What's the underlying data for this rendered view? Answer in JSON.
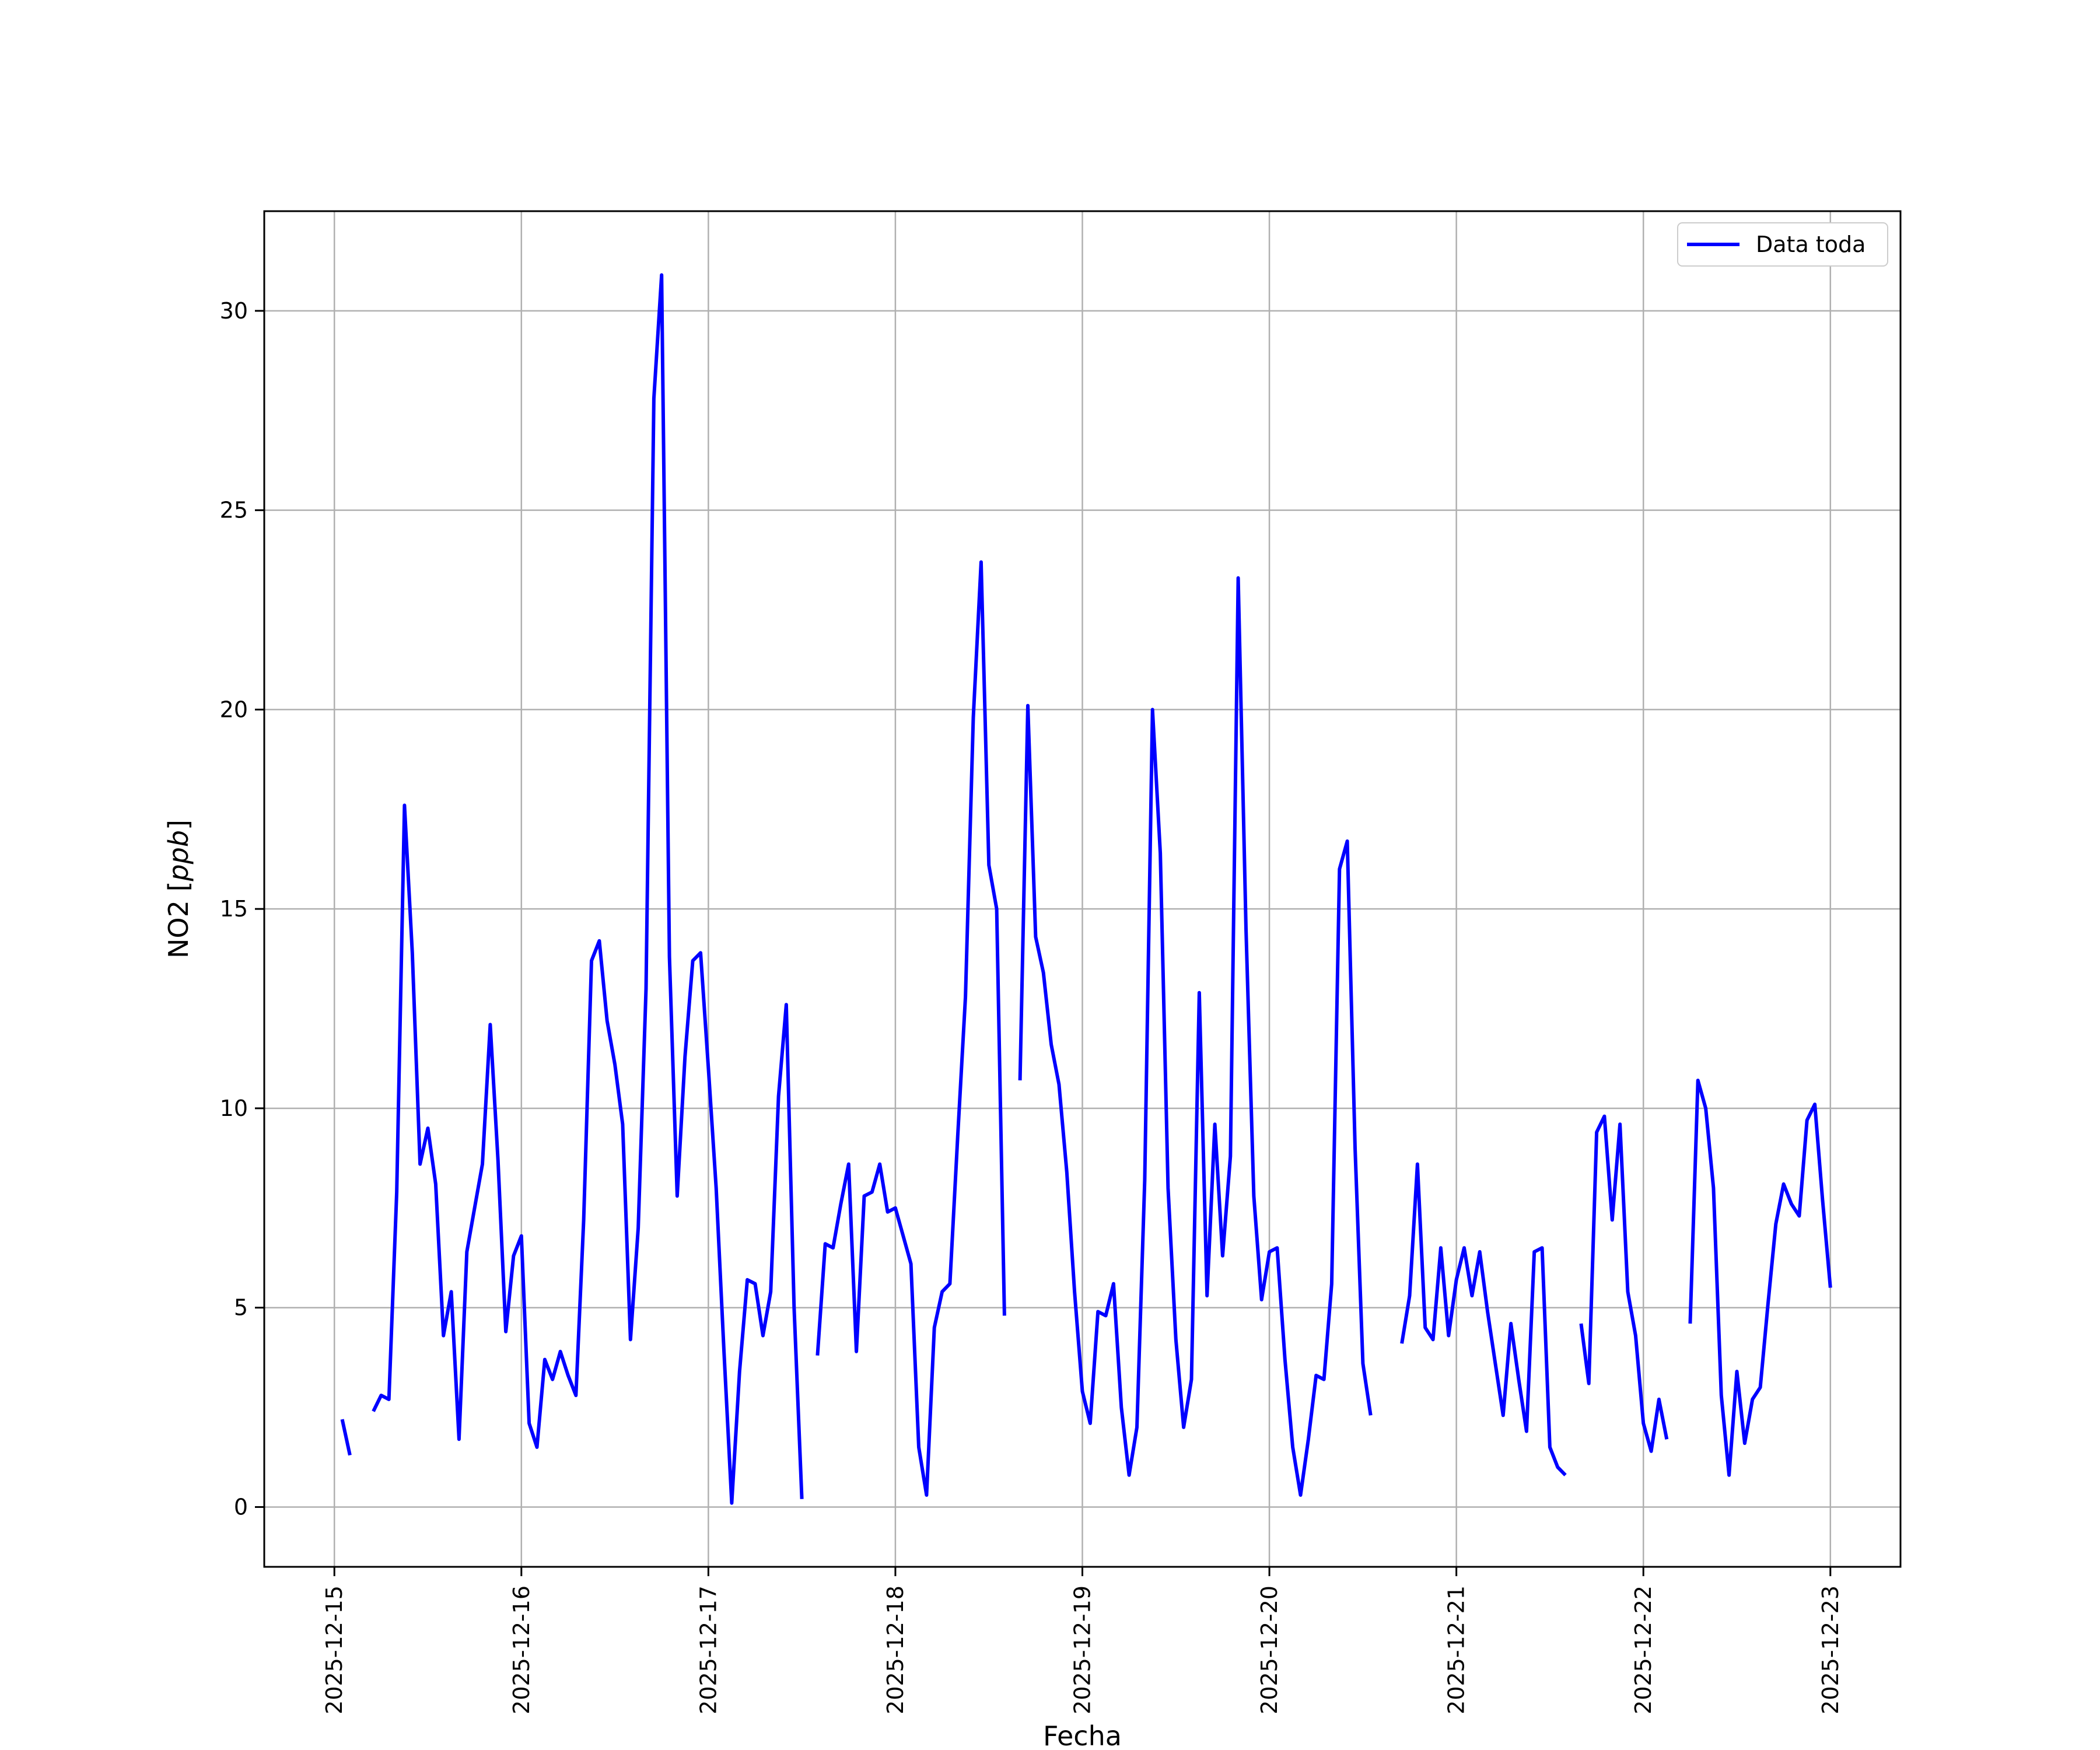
{
  "chart_data": {
    "type": "line",
    "title": "",
    "xlabel": "Fecha",
    "ylabel": "NO2 [ppb]",
    "ylabel_parts": {
      "prefix": "NO2 [",
      "unit": "ppb",
      "suffix": "]"
    },
    "xlim": [
      "2025-12-14 15:00",
      "2025-12-23 09:00"
    ],
    "ylim": [
      -1.5,
      32.5
    ],
    "x_ticks": [
      "2025-12-15",
      "2025-12-16",
      "2025-12-17",
      "2025-12-18",
      "2025-12-19",
      "2025-12-20",
      "2025-12-21",
      "2025-12-22",
      "2025-12-23"
    ],
    "y_ticks": [
      0,
      5,
      10,
      15,
      20,
      25,
      30
    ],
    "grid": true,
    "legend": {
      "position": "upper-right"
    },
    "series": [
      {
        "name": "Data toda",
        "color": "#0000ff",
        "points": [
          [
            "2025-12-15 01:00",
            2.2
          ],
          [
            "2025-12-15 02:00",
            1.3
          ],
          [
            "2025-12-15 03:00",
            null
          ],
          [
            "2025-12-15 05:00",
            2.4
          ],
          [
            "2025-12-15 06:00",
            2.8
          ],
          [
            "2025-12-15 07:00",
            2.7
          ],
          [
            "2025-12-15 08:00",
            7.9
          ],
          [
            "2025-12-15 09:00",
            17.6
          ],
          [
            "2025-12-15 10:00",
            13.9
          ],
          [
            "2025-12-15 11:00",
            8.6
          ],
          [
            "2025-12-15 12:00",
            9.5
          ],
          [
            "2025-12-15 13:00",
            8.1
          ],
          [
            "2025-12-15 14:00",
            4.3
          ],
          [
            "2025-12-15 15:00",
            5.4
          ],
          [
            "2025-12-15 16:00",
            1.7
          ],
          [
            "2025-12-15 17:00",
            6.4
          ],
          [
            "2025-12-15 18:00",
            7.5
          ],
          [
            "2025-12-15 19:00",
            8.6
          ],
          [
            "2025-12-15 20:00",
            12.1
          ],
          [
            "2025-12-15 21:00",
            8.7
          ],
          [
            "2025-12-15 22:00",
            4.4
          ],
          [
            "2025-12-15 23:00",
            6.3
          ],
          [
            "2025-12-16 00:00",
            6.8
          ],
          [
            "2025-12-16 01:00",
            2.1
          ],
          [
            "2025-12-16 02:00",
            1.5
          ],
          [
            "2025-12-16 03:00",
            3.7
          ],
          [
            "2025-12-16 04:00",
            3.2
          ],
          [
            "2025-12-16 05:00",
            3.9
          ],
          [
            "2025-12-16 06:00",
            3.3
          ],
          [
            "2025-12-16 07:00",
            2.8
          ],
          [
            "2025-12-16 08:00",
            7.2
          ],
          [
            "2025-12-16 09:00",
            13.7
          ],
          [
            "2025-12-16 10:00",
            14.2
          ],
          [
            "2025-12-16 11:00",
            12.2
          ],
          [
            "2025-12-16 12:00",
            11.1
          ],
          [
            "2025-12-16 13:00",
            9.6
          ],
          [
            "2025-12-16 14:00",
            4.2
          ],
          [
            "2025-12-16 15:00",
            7.0
          ],
          [
            "2025-12-16 16:00",
            13.0
          ],
          [
            "2025-12-16 17:00",
            27.8
          ],
          [
            "2025-12-16 18:00",
            30.9
          ],
          [
            "2025-12-16 19:00",
            13.8
          ],
          [
            "2025-12-16 20:00",
            7.8
          ],
          [
            "2025-12-16 21:00",
            11.3
          ],
          [
            "2025-12-16 22:00",
            13.7
          ],
          [
            "2025-12-16 23:00",
            13.9
          ],
          [
            "2025-12-17 00:00",
            11.0
          ],
          [
            "2025-12-17 01:00",
            8.0
          ],
          [
            "2025-12-17 02:00",
            3.9
          ],
          [
            "2025-12-17 03:00",
            0.1
          ],
          [
            "2025-12-17 04:00",
            3.4
          ],
          [
            "2025-12-17 05:00",
            5.7
          ],
          [
            "2025-12-17 06:00",
            5.6
          ],
          [
            "2025-12-17 07:00",
            4.3
          ],
          [
            "2025-12-17 08:00",
            5.4
          ],
          [
            "2025-12-17 09:00",
            10.3
          ],
          [
            "2025-12-17 10:00",
            12.6
          ],
          [
            "2025-12-17 11:00",
            5.0
          ],
          [
            "2025-12-17 12:00",
            0.2
          ],
          [
            "2025-12-17 13:00",
            null
          ],
          [
            "2025-12-17 14:00",
            3.8
          ],
          [
            "2025-12-17 15:00",
            6.6
          ],
          [
            "2025-12-17 16:00",
            6.5
          ],
          [
            "2025-12-17 17:00",
            7.6
          ],
          [
            "2025-12-17 18:00",
            8.6
          ],
          [
            "2025-12-17 19:00",
            3.9
          ],
          [
            "2025-12-17 20:00",
            7.8
          ],
          [
            "2025-12-17 21:00",
            7.9
          ],
          [
            "2025-12-17 22:00",
            8.6
          ],
          [
            "2025-12-17 23:00",
            7.4
          ],
          [
            "2025-12-18 00:00",
            7.5
          ],
          [
            "2025-12-18 01:00",
            6.8
          ],
          [
            "2025-12-18 02:00",
            6.1
          ],
          [
            "2025-12-18 03:00",
            1.5
          ],
          [
            "2025-12-18 04:00",
            0.3
          ],
          [
            "2025-12-18 05:00",
            4.5
          ],
          [
            "2025-12-18 06:00",
            5.4
          ],
          [
            "2025-12-18 07:00",
            5.6
          ],
          [
            "2025-12-18 08:00",
            9.3
          ],
          [
            "2025-12-18 09:00",
            12.8
          ],
          [
            "2025-12-18 10:00",
            19.8
          ],
          [
            "2025-12-18 11:00",
            23.7
          ],
          [
            "2025-12-18 12:00",
            16.1
          ],
          [
            "2025-12-18 13:00",
            15.0
          ],
          [
            "2025-12-18 14:00",
            4.8
          ],
          [
            "2025-12-18 15:00",
            null
          ],
          [
            "2025-12-18 16:00",
            10.7
          ],
          [
            "2025-12-18 17:00",
            20.1
          ],
          [
            "2025-12-18 18:00",
            14.3
          ],
          [
            "2025-12-18 19:00",
            13.4
          ],
          [
            "2025-12-18 20:00",
            11.6
          ],
          [
            "2025-12-18 21:00",
            10.6
          ],
          [
            "2025-12-18 22:00",
            8.4
          ],
          [
            "2025-12-18 23:00",
            5.4
          ],
          [
            "2025-12-19 00:00",
            2.9
          ],
          [
            "2025-12-19 01:00",
            2.1
          ],
          [
            "2025-12-19 02:00",
            4.9
          ],
          [
            "2025-12-19 03:00",
            4.8
          ],
          [
            "2025-12-19 04:00",
            5.6
          ],
          [
            "2025-12-19 05:00",
            2.5
          ],
          [
            "2025-12-19 06:00",
            0.8
          ],
          [
            "2025-12-19 07:00",
            2.0
          ],
          [
            "2025-12-19 08:00",
            8.2
          ],
          [
            "2025-12-19 09:00",
            20.0
          ],
          [
            "2025-12-19 10:00",
            16.4
          ],
          [
            "2025-12-19 11:00",
            8.0
          ],
          [
            "2025-12-19 12:00",
            4.2
          ],
          [
            "2025-12-19 13:00",
            2.0
          ],
          [
            "2025-12-19 14:00",
            3.2
          ],
          [
            "2025-12-19 15:00",
            12.9
          ],
          [
            "2025-12-19 16:00",
            5.3
          ],
          [
            "2025-12-19 17:00",
            9.6
          ],
          [
            "2025-12-19 18:00",
            6.3
          ],
          [
            "2025-12-19 19:00",
            8.8
          ],
          [
            "2025-12-19 20:00",
            23.3
          ],
          [
            "2025-12-19 21:00",
            14.5
          ],
          [
            "2025-12-19 22:00",
            7.8
          ],
          [
            "2025-12-19 23:00",
            5.2
          ],
          [
            "2025-12-20 00:00",
            6.4
          ],
          [
            "2025-12-20 01:00",
            6.5
          ],
          [
            "2025-12-20 02:00",
            3.7
          ],
          [
            "2025-12-20 03:00",
            1.5
          ],
          [
            "2025-12-20 04:00",
            0.3
          ],
          [
            "2025-12-20 05:00",
            1.7
          ],
          [
            "2025-12-20 06:00",
            3.3
          ],
          [
            "2025-12-20 07:00",
            3.2
          ],
          [
            "2025-12-20 08:00",
            5.6
          ],
          [
            "2025-12-20 09:00",
            16.0
          ],
          [
            "2025-12-20 10:00",
            16.7
          ],
          [
            "2025-12-20 11:00",
            9.0
          ],
          [
            "2025-12-20 12:00",
            3.6
          ],
          [
            "2025-12-20 13:00",
            2.3
          ],
          [
            "2025-12-20 14:00",
            null
          ],
          [
            "2025-12-20 17:00",
            4.1
          ],
          [
            "2025-12-20 18:00",
            5.3
          ],
          [
            "2025-12-20 19:00",
            8.6
          ],
          [
            "2025-12-20 20:00",
            4.5
          ],
          [
            "2025-12-20 21:00",
            4.2
          ],
          [
            "2025-12-20 22:00",
            6.5
          ],
          [
            "2025-12-20 23:00",
            4.3
          ],
          [
            "2025-12-21 00:00",
            5.7
          ],
          [
            "2025-12-21 01:00",
            6.5
          ],
          [
            "2025-12-21 02:00",
            5.3
          ],
          [
            "2025-12-21 03:00",
            6.4
          ],
          [
            "2025-12-21 04:00",
            4.9
          ],
          [
            "2025-12-21 05:00",
            3.6
          ],
          [
            "2025-12-21 06:00",
            2.3
          ],
          [
            "2025-12-21 07:00",
            4.6
          ],
          [
            "2025-12-21 08:00",
            3.2
          ],
          [
            "2025-12-21 09:00",
            1.9
          ],
          [
            "2025-12-21 10:00",
            6.4
          ],
          [
            "2025-12-21 11:00",
            6.5
          ],
          [
            "2025-12-21 12:00",
            1.5
          ],
          [
            "2025-12-21 13:00",
            1.0
          ],
          [
            "2025-12-21 14:00",
            0.8
          ],
          [
            "2025-12-21 15:00",
            null
          ],
          [
            "2025-12-21 16:00",
            4.6
          ],
          [
            "2025-12-21 17:00",
            3.1
          ],
          [
            "2025-12-21 18:00",
            9.4
          ],
          [
            "2025-12-21 19:00",
            9.8
          ],
          [
            "2025-12-21 20:00",
            7.2
          ],
          [
            "2025-12-21 21:00",
            9.6
          ],
          [
            "2025-12-21 22:00",
            5.4
          ],
          [
            "2025-12-21 23:00",
            4.3
          ],
          [
            "2025-12-22 00:00",
            2.1
          ],
          [
            "2025-12-22 01:00",
            1.4
          ],
          [
            "2025-12-22 02:00",
            2.7
          ],
          [
            "2025-12-22 03:00",
            1.7
          ],
          [
            "2025-12-22 04:00",
            null
          ],
          [
            "2025-12-22 06:00",
            4.6
          ],
          [
            "2025-12-22 07:00",
            10.7
          ],
          [
            "2025-12-22 08:00",
            10.0
          ],
          [
            "2025-12-22 09:00",
            8.0
          ],
          [
            "2025-12-22 10:00",
            2.8
          ],
          [
            "2025-12-22 11:00",
            0.8
          ],
          [
            "2025-12-22 12:00",
            3.4
          ],
          [
            "2025-12-22 13:00",
            1.6
          ],
          [
            "2025-12-22 14:00",
            2.7
          ],
          [
            "2025-12-22 15:00",
            3.0
          ],
          [
            "2025-12-22 16:00",
            5.1
          ],
          [
            "2025-12-22 17:00",
            7.1
          ],
          [
            "2025-12-22 18:00",
            8.1
          ],
          [
            "2025-12-22 19:00",
            7.6
          ],
          [
            "2025-12-22 20:00",
            7.3
          ],
          [
            "2025-12-22 21:00",
            9.7
          ],
          [
            "2025-12-22 22:00",
            10.1
          ],
          [
            "2025-12-22 23:00",
            7.7
          ],
          [
            "2025-12-23 00:00",
            5.5
          ]
        ]
      }
    ]
  }
}
